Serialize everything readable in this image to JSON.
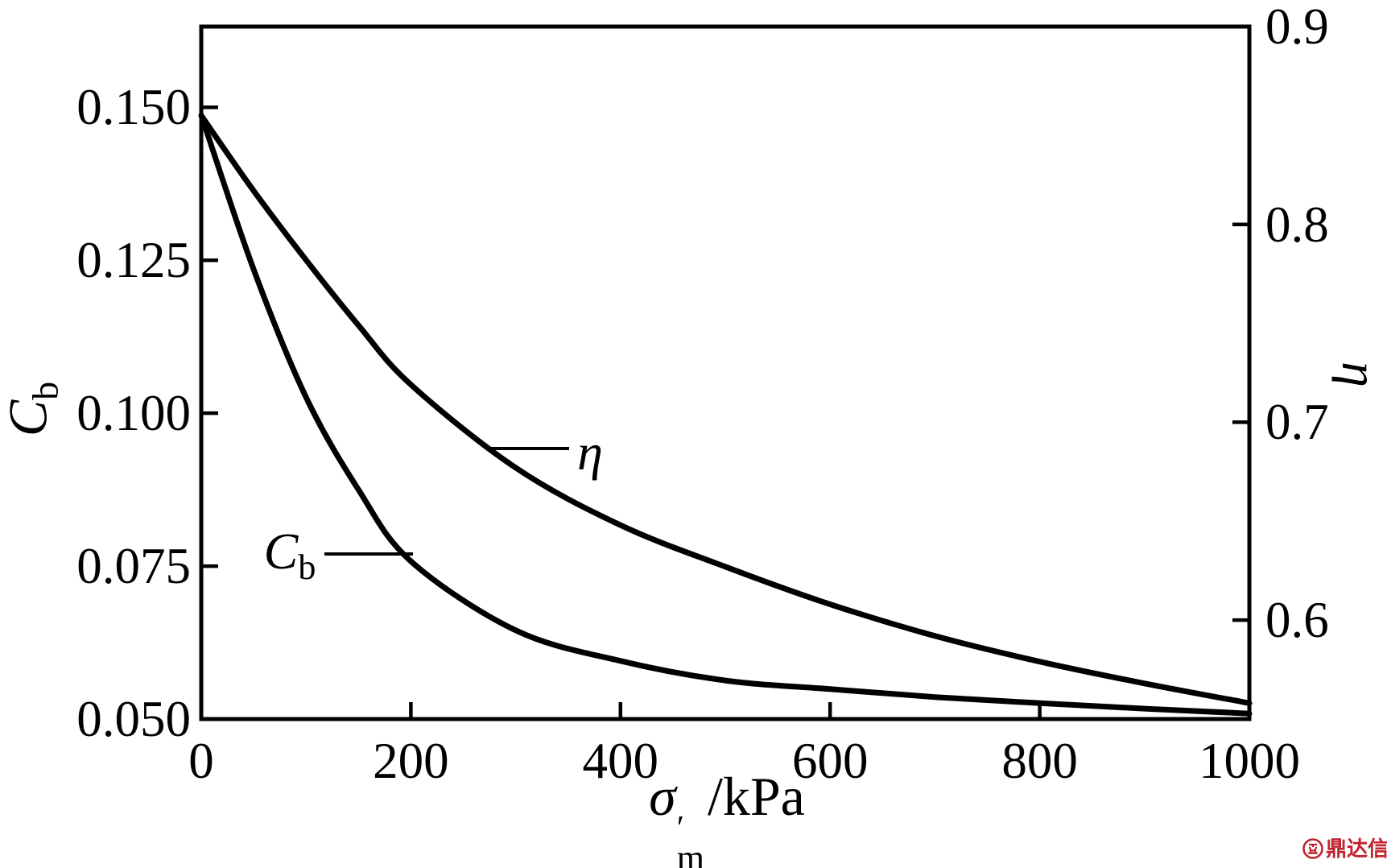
{
  "figure": {
    "background": "#ffffff",
    "ink": "#000000",
    "watermark": {
      "text": "鼎达信",
      "color": "#c2232e",
      "icon": "dingdaxin-logo"
    }
  },
  "chart_data": {
    "type": "line",
    "title": "",
    "grid": false,
    "legend": "inline curve annotations",
    "x_axis": {
      "label": "σ′m/kPa",
      "label_parts": {
        "symbol": "σ",
        "prime": "′",
        "subscript": "m",
        "unit": "/kPa"
      },
      "range": [
        0,
        1000
      ],
      "ticks": [
        {
          "value": 0,
          "label": "0"
        },
        {
          "value": 200,
          "label": "200"
        },
        {
          "value": 400,
          "label": "400"
        },
        {
          "value": 600,
          "label": "600"
        },
        {
          "value": 800,
          "label": "800"
        },
        {
          "value": 1000,
          "label": "1000"
        }
      ]
    },
    "y_left_axis": {
      "label": "Cb",
      "label_parts": {
        "symbol": "C",
        "subscript": "b"
      },
      "range": [
        0.05,
        0.15
      ],
      "display_range": [
        0.05,
        0.1632
      ],
      "ticks": [
        {
          "value": 0.15,
          "label": "0.150"
        },
        {
          "value": 0.125,
          "label": "0.125"
        },
        {
          "value": 0.1,
          "label": "0.100"
        },
        {
          "value": 0.075,
          "label": "0.075"
        },
        {
          "value": 0.05,
          "label": "0.050"
        }
      ]
    },
    "y_right_axis": {
      "label": "η",
      "range": [
        0.55,
        0.9
      ],
      "display_range": [
        0.55,
        0.9
      ],
      "ticks": [
        {
          "value": 0.9,
          "label": "0.9"
        },
        {
          "value": 0.8,
          "label": "0.8"
        },
        {
          "value": 0.7,
          "label": "0.7"
        },
        {
          "value": 0.6,
          "label": "0.6"
        }
      ]
    },
    "series": [
      {
        "name": "eta",
        "annotation_label": "η",
        "axis": "right",
        "color": "#000000",
        "points": [
          [
            0,
            0.855
          ],
          [
            50,
            0.817
          ],
          [
            100,
            0.782
          ],
          [
            150,
            0.749
          ],
          [
            200,
            0.719
          ],
          [
            300,
            0.677
          ],
          [
            400,
            0.648
          ],
          [
            500,
            0.627
          ],
          [
            600,
            0.608
          ],
          [
            700,
            0.592
          ],
          [
            800,
            0.579
          ],
          [
            900,
            0.568
          ],
          [
            1000,
            0.558
          ]
        ]
      },
      {
        "name": "Cb",
        "annotation_label": "Cb",
        "annotation_label_parts": {
          "symbol": "C",
          "subscript": "b"
        },
        "axis": "left",
        "color": "#000000",
        "points": [
          [
            0,
            0.1487
          ],
          [
            50,
            0.1235
          ],
          [
            100,
            0.1026
          ],
          [
            150,
            0.0875
          ],
          [
            200,
            0.0758
          ],
          [
            300,
            0.0645
          ],
          [
            400,
            0.0595
          ],
          [
            500,
            0.0563
          ],
          [
            600,
            0.0549
          ],
          [
            700,
            0.0536
          ],
          [
            800,
            0.0526
          ],
          [
            900,
            0.0517
          ],
          [
            1000,
            0.0509
          ]
        ]
      }
    ]
  }
}
